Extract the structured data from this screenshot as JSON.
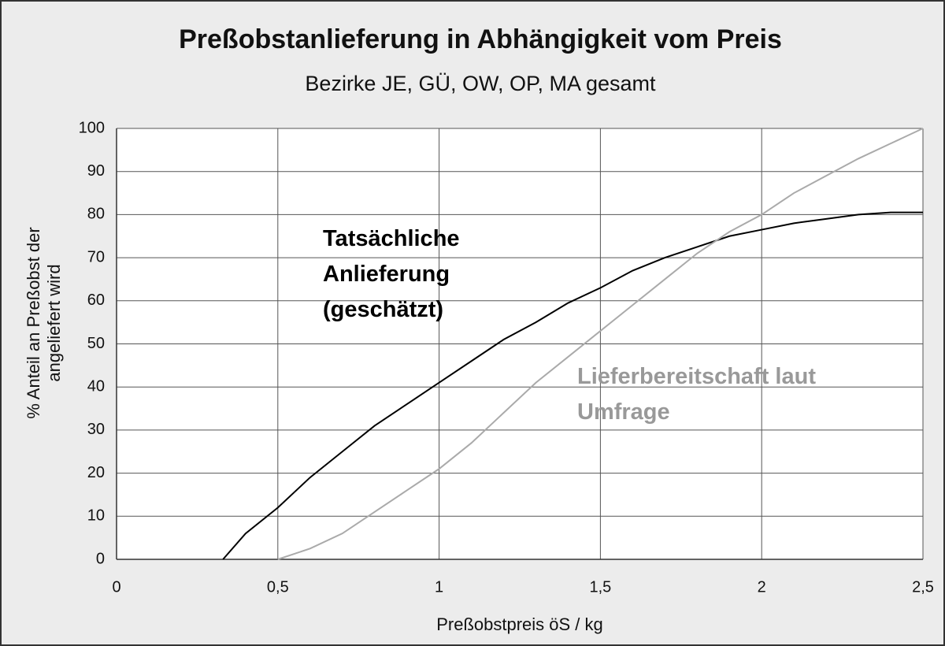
{
  "chart_data": {
    "type": "line",
    "title": "Preßobstanlieferung in Abhängigkeit vom Preis",
    "subtitle": "Bezirke JE, GÜ, OW, OP, MA gesamt",
    "x_label": "Preßobstpreis öS / kg",
    "y_label": [
      "% Anteil an Preßobst der",
      "angeliefert wird"
    ],
    "xlim": [
      0,
      2.5
    ],
    "xticks": [
      0,
      {
        "value": 0.5,
        "label": "0,5"
      },
      1,
      {
        "value": 1.5,
        "label": "1,5"
      },
      2,
      {
        "value": 2.5,
        "label": "2,5"
      }
    ],
    "ylim": [
      0,
      100
    ],
    "yticks": [
      0,
      10,
      20,
      30,
      40,
      50,
      60,
      70,
      80,
      90,
      100
    ],
    "grid": true,
    "series": [
      {
        "name": "Tatsächliche Anlieferung (geschätzt)",
        "color": "#000000",
        "x": [
          0.33,
          0.4,
          0.5,
          0.6,
          0.7,
          0.8,
          0.9,
          1.0,
          1.1,
          1.2,
          1.3,
          1.4,
          1.5,
          1.6,
          1.7,
          1.8,
          1.9,
          2.0,
          2.1,
          2.2,
          2.3,
          2.4,
          2.5
        ],
        "values": [
          0,
          6,
          12,
          19,
          25,
          31,
          36,
          41,
          46,
          51,
          55,
          59.5,
          63,
          67,
          70,
          72.5,
          75,
          76.5,
          78,
          79,
          80,
          80.5,
          80.5
        ]
      },
      {
        "name": "Lieferbereitschaft laut Umfrage",
        "color": "#aaaaaa",
        "x": [
          0.5,
          0.6,
          0.7,
          0.8,
          0.9,
          1.0,
          1.1,
          1.2,
          1.3,
          1.4,
          1.5,
          1.6,
          1.7,
          1.8,
          1.9,
          2.0,
          2.1,
          2.2,
          2.3,
          2.4,
          2.5
        ],
        "values": [
          0,
          2.5,
          6,
          11,
          16,
          21,
          27,
          34,
          41,
          47,
          53,
          59,
          65,
          71,
          76,
          80,
          85,
          89,
          93,
          96.5,
          100
        ]
      }
    ]
  }
}
